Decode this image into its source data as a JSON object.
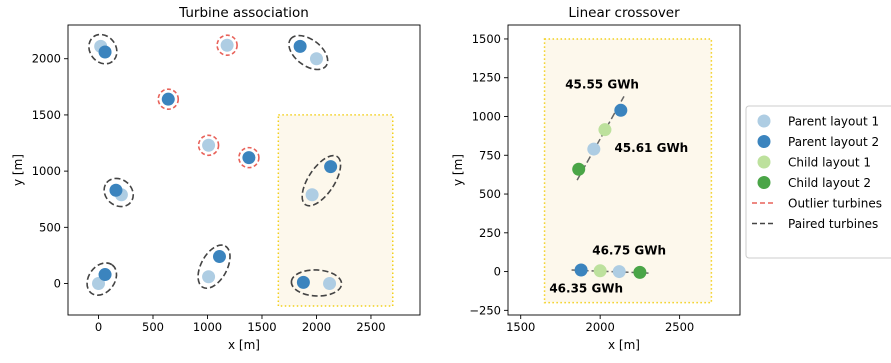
{
  "colors": {
    "parent1": "#aecde3",
    "parent2": "#3b84be",
    "child1": "#bde19d",
    "child2": "#4aa547",
    "outlier": "#e8625a",
    "paired": "#444444",
    "region_fill": "#fdf8ec",
    "region_edge": "#f2d01c"
  },
  "chart_data": [
    {
      "type": "scatter",
      "title": "Turbine association",
      "xlabel": "x [m]",
      "ylabel": "y [m]",
      "xlim": [
        -280,
        2950
      ],
      "ylim": [
        -280,
        2300
      ],
      "xticks": [
        0,
        500,
        1000,
        1500,
        2000,
        2500
      ],
      "yticks": [
        0,
        500,
        1000,
        1500,
        2000
      ],
      "xtick_labels": [
        "0",
        "500",
        "1000",
        "1500",
        "2000",
        "2500"
      ],
      "ytick_labels": [
        "0",
        "500",
        "1000",
        "1500",
        "2000"
      ],
      "region": {
        "x": [
          1650,
          2700
        ],
        "y": [
          -200,
          1500
        ]
      },
      "parent1": [
        {
          "x": 20,
          "y": 2110
        },
        {
          "x": 2000,
          "y": 2000
        },
        {
          "x": 1180,
          "y": 2120
        },
        {
          "x": 1010,
          "y": 1230
        },
        {
          "x": 210,
          "y": 790
        },
        {
          "x": 1960,
          "y": 790
        },
        {
          "x": 1010,
          "y": 60
        },
        {
          "x": 2120,
          "y": 0
        },
        {
          "x": 0,
          "y": 0
        }
      ],
      "parent2": [
        {
          "x": 60,
          "y": 2060
        },
        {
          "x": 1850,
          "y": 2110
        },
        {
          "x": 640,
          "y": 1640
        },
        {
          "x": 1380,
          "y": 1120
        },
        {
          "x": 160,
          "y": 830
        },
        {
          "x": 2130,
          "y": 1040
        },
        {
          "x": 1110,
          "y": 240
        },
        {
          "x": 60,
          "y": 80
        },
        {
          "x": 1880,
          "y": 10
        }
      ],
      "outlier_circles": [
        {
          "x": 1180,
          "y": 2120
        },
        {
          "x": 640,
          "y": 1640
        },
        {
          "x": 1010,
          "y": 1230
        },
        {
          "x": 1380,
          "y": 1120
        }
      ],
      "paired_ellipses": [
        {
          "a": [
            20,
            2110
          ],
          "b": [
            60,
            2060
          ]
        },
        {
          "a": [
            2000,
            2000
          ],
          "b": [
            1850,
            2110
          ]
        },
        {
          "a": [
            210,
            790
          ],
          "b": [
            160,
            830
          ]
        },
        {
          "a": [
            1960,
            790
          ],
          "b": [
            2130,
            1040
          ]
        },
        {
          "a": [
            1010,
            60
          ],
          "b": [
            1110,
            240
          ]
        },
        {
          "a": [
            0,
            0
          ],
          "b": [
            60,
            80
          ]
        },
        {
          "a": [
            2120,
            0
          ],
          "b": [
            1880,
            10
          ]
        }
      ]
    },
    {
      "type": "scatter",
      "title": "Linear crossover",
      "xlabel": "x [m]",
      "ylabel": "y [m]",
      "xlim": [
        1420,
        2880
      ],
      "ylim": [
        -280,
        1590
      ],
      "xticks": [
        1500,
        2000,
        2500
      ],
      "yticks": [
        -250,
        0,
        250,
        500,
        750,
        1000,
        1250,
        1500
      ],
      "xtick_labels": [
        "1500",
        "2000",
        "2500"
      ],
      "ytick_labels": [
        "−250",
        "0",
        "250",
        "500",
        "750",
        "1000",
        "1250",
        "1500"
      ],
      "region": {
        "x": [
          1650,
          2700
        ],
        "y": [
          -200,
          1500
        ]
      },
      "segments": [
        {
          "from": [
            1855,
            590
          ],
          "to": [
            2150,
            1130
          ]
        },
        {
          "from": [
            1820,
            10
          ],
          "to": [
            2310,
            -10
          ]
        }
      ],
      "parent1": [
        {
          "x": 1960,
          "y": 790
        },
        {
          "x": 2120,
          "y": 0
        }
      ],
      "parent2": [
        {
          "x": 2130,
          "y": 1040
        },
        {
          "x": 1880,
          "y": 10
        }
      ],
      "child1": [
        {
          "x": 2030,
          "y": 915
        },
        {
          "x": 2000,
          "y": 5
        }
      ],
      "child2": [
        {
          "x": 1865,
          "y": 660
        },
        {
          "x": 2250,
          "y": -5
        }
      ],
      "annotations": [
        {
          "text": "45.55 GWh",
          "x": 1780,
          "y": 1180,
          "color_key": "parent2"
        },
        {
          "text": "45.61 GWh",
          "x": 2090,
          "y": 770,
          "color_key": "parent1"
        },
        {
          "text": "46.75 GWh",
          "x": 1950,
          "y": 110,
          "color_key": "parent1"
        },
        {
          "text": "46.35 GWh",
          "x": 1680,
          "y": -135,
          "color_key": "parent2"
        }
      ]
    }
  ],
  "legend": {
    "placement": "right",
    "entries": [
      {
        "label": "Parent layout 1",
        "kind": "marker",
        "color_key": "parent1"
      },
      {
        "label": "Parent layout 2",
        "kind": "marker",
        "color_key": "parent2"
      },
      {
        "label": "Child layout 1",
        "kind": "marker",
        "color_key": "child1"
      },
      {
        "label": "Child layout 2",
        "kind": "marker",
        "color_key": "child2"
      },
      {
        "label": "Outlier turbines",
        "kind": "line",
        "color_key": "outlier"
      },
      {
        "label": "Paired turbines",
        "kind": "line",
        "color_key": "paired"
      }
    ]
  }
}
